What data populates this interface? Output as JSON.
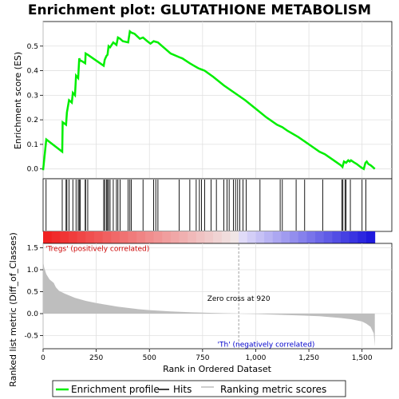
{
  "chart_data": {
    "type": "line",
    "title": "Enrichment plot: GLUTATHIONE METABOLISM",
    "top_panel": {
      "ylabel": "Enrichment score (ES)",
      "ylim": [
        -0.04,
        0.6
      ],
      "yticks": [
        0.0,
        0.1,
        0.2,
        0.3,
        0.4,
        0.5
      ],
      "ytick_labels": [
        "0.0",
        "0.1",
        "0.2",
        "0.3",
        "0.4",
        "0.5"
      ],
      "line_color": "#00ee00",
      "es_profile": {
        "x": [
          0,
          15,
          90,
          92,
          108,
          112,
          122,
          135,
          140,
          150,
          155,
          165,
          170,
          175,
          180,
          198,
          200,
          210,
          285,
          290,
          298,
          303,
          308,
          315,
          330,
          345,
          352,
          362,
          375,
          400,
          408,
          415,
          430,
          455,
          470,
          490,
          505,
          520,
          540,
          560,
          600,
          640,
          655,
          690,
          710,
          730,
          760,
          800,
          850,
          900,
          950,
          1000,
          1050,
          1100,
          1125,
          1150,
          1200,
          1250,
          1300,
          1325,
          1350,
          1375,
          1400,
          1408,
          1415,
          1425,
          1435,
          1442,
          1448,
          1465,
          1475,
          1490,
          1498,
          1508,
          1516,
          1522,
          1530,
          1540,
          1550,
          1560
        ],
        "y": [
          -0.005,
          0.12,
          0.07,
          0.19,
          0.18,
          0.23,
          0.28,
          0.27,
          0.31,
          0.3,
          0.38,
          0.37,
          0.45,
          0.44,
          0.44,
          0.43,
          0.47,
          0.465,
          0.42,
          0.445,
          0.46,
          0.465,
          0.5,
          0.495,
          0.515,
          0.505,
          0.535,
          0.53,
          0.52,
          0.515,
          0.56,
          0.555,
          0.55,
          0.53,
          0.535,
          0.52,
          0.51,
          0.52,
          0.515,
          0.5,
          0.47,
          0.455,
          0.45,
          0.43,
          0.42,
          0.41,
          0.4,
          0.375,
          0.34,
          0.31,
          0.28,
          0.245,
          0.21,
          0.18,
          0.17,
          0.155,
          0.13,
          0.1,
          0.07,
          0.06,
          0.045,
          0.03,
          0.015,
          0.008,
          0.03,
          0.025,
          0.035,
          0.03,
          0.035,
          0.025,
          0.02,
          0.01,
          0.005,
          0.0,
          0.025,
          0.03,
          0.02,
          0.015,
          0.008,
          0.0
        ]
      }
    },
    "hits": [
      14,
      90,
      108,
      112,
      122,
      140,
      155,
      165,
      170,
      175,
      198,
      200,
      210,
      285,
      290,
      298,
      303,
      308,
      315,
      330,
      345,
      352,
      362,
      400,
      408,
      415,
      470,
      520,
      530,
      540,
      640,
      690,
      720,
      735,
      745,
      760,
      790,
      815,
      850,
      865,
      875,
      895,
      905,
      915,
      925,
      940,
      955,
      1020,
      1115,
      1125,
      1190,
      1230,
      1315,
      1405,
      1410,
      1420,
      1425,
      1445,
      1500,
      1518
    ],
    "bottom_panel": {
      "ylabel": "Ranked list metric (Diff_of_Classes)",
      "xlabel": "Rank in Ordered Dataset",
      "ylim": [
        -0.8,
        1.6
      ],
      "yticks": [
        -0.5,
        0.0,
        0.5,
        1.0,
        1.5
      ],
      "ytick_labels": [
        "-0.5",
        "0.0",
        "0.5",
        "1.0",
        "1.5"
      ],
      "xlim": [
        0,
        1640
      ],
      "xticks": [
        0,
        250,
        500,
        750,
        1000,
        1250,
        1500
      ],
      "xtick_labels": [
        "0",
        "250",
        "500",
        "750",
        "1,000",
        "1,250",
        "1,500"
      ],
      "fill_color": "#bebebe",
      "metric": {
        "x": [
          0,
          5,
          15,
          30,
          50,
          60,
          75,
          100,
          150,
          200,
          250,
          300,
          350,
          400,
          450,
          500,
          600,
          700,
          800,
          900,
          920,
          1000,
          1100,
          1200,
          1300,
          1400,
          1450,
          1500,
          1520,
          1540,
          1555,
          1560
        ],
        "y": [
          1.2,
          1.05,
          0.9,
          0.78,
          0.7,
          0.6,
          0.52,
          0.46,
          0.36,
          0.29,
          0.24,
          0.2,
          0.16,
          0.13,
          0.1,
          0.08,
          0.05,
          0.03,
          0.015,
          0.005,
          0.0,
          -0.01,
          -0.025,
          -0.04,
          -0.06,
          -0.1,
          -0.13,
          -0.18,
          -0.23,
          -0.3,
          -0.45,
          -0.75
        ]
      },
      "zero_cross": 920,
      "zero_cross_label": "Zero cross at 920",
      "pos_label": "'Tregs' (positively correlated)",
      "neg_label": "'Th' (negatively correlated)"
    },
    "legend": [
      {
        "label": "Enrichment profile",
        "color": "#00ee00"
      },
      {
        "label": "Hits",
        "color": "#000000"
      },
      {
        "label": "Ranking metric scores",
        "color": "#bebebe"
      }
    ]
  }
}
